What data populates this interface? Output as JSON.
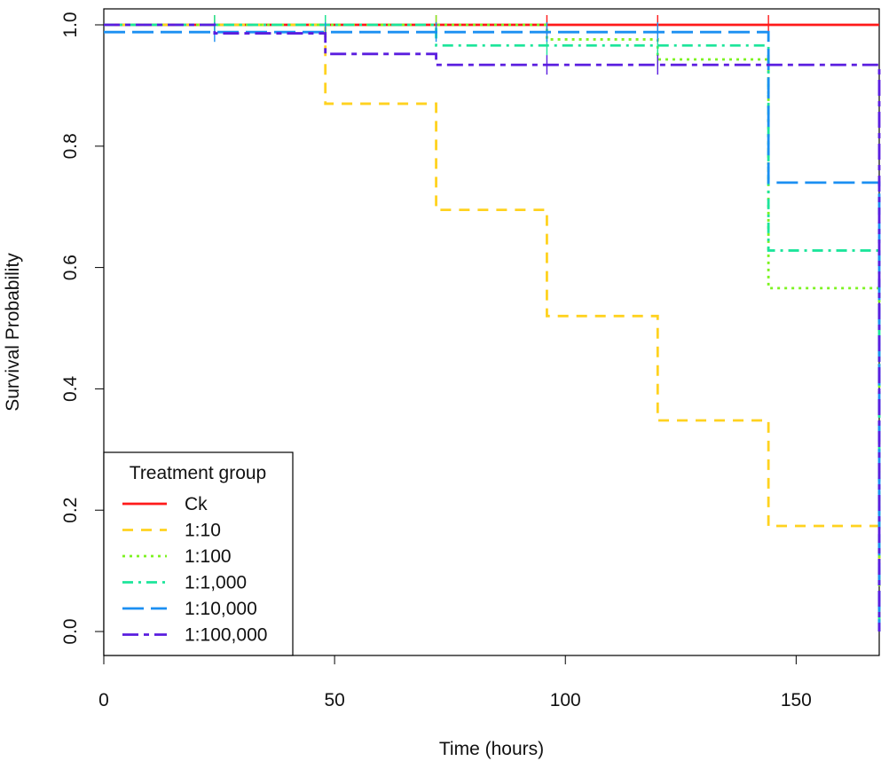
{
  "chart_data": {
    "type": "line",
    "subtype": "step-survival",
    "title": "",
    "xlabel": "Time (hours)",
    "ylabel": "Survival Probability",
    "xlim": [
      0,
      168
    ],
    "ylim": [
      0,
      1
    ],
    "x_ticks": [
      0,
      50,
      100,
      150
    ],
    "y_ticks": [
      0.0,
      0.2,
      0.4,
      0.6,
      0.8,
      1.0
    ],
    "x_tick_labels": [
      "0",
      "50",
      "100",
      "150"
    ],
    "y_tick_labels": [
      "0.0",
      "0.2",
      "0.4",
      "0.6",
      "0.8",
      "1.0"
    ],
    "grid": false,
    "legend": {
      "title": "Treatment group",
      "position": "bottom-left"
    },
    "series": [
      {
        "name": "Ck",
        "color": "#ff1a1a",
        "dash": "solid",
        "points": [
          [
            0,
            1.0
          ],
          [
            168,
            1.0
          ]
        ],
        "censor_x": [
          24,
          48,
          72,
          96,
          120,
          144
        ]
      },
      {
        "name": "1:10",
        "color": "#ffd21f",
        "dash": "dashed",
        "points": [
          [
            0,
            1.0
          ],
          [
            48,
            1.0
          ],
          [
            48,
            0.87
          ],
          [
            72,
            0.87
          ],
          [
            72,
            0.695
          ],
          [
            96,
            0.695
          ],
          [
            96,
            0.52
          ],
          [
            120,
            0.52
          ],
          [
            120,
            0.348
          ],
          [
            144,
            0.348
          ],
          [
            144,
            0.174
          ],
          [
            168,
            0.174
          ],
          [
            168,
            0.0
          ]
        ],
        "censor_x": []
      },
      {
        "name": "1:100",
        "color": "#7cf321",
        "dash": "dotted",
        "points": [
          [
            0,
            1.0
          ],
          [
            96,
            1.0
          ],
          [
            96,
            0.976
          ],
          [
            120,
            0.976
          ],
          [
            120,
            0.943
          ],
          [
            144,
            0.943
          ],
          [
            144,
            0.566
          ],
          [
            168,
            0.566
          ],
          [
            168,
            0.0
          ]
        ],
        "censor_x": [
          24,
          48,
          72,
          120
        ]
      },
      {
        "name": "1:1,000",
        "color": "#1de59b",
        "dash": "dashdot",
        "points": [
          [
            0,
            1.0
          ],
          [
            72,
            1.0
          ],
          [
            72,
            0.966
          ],
          [
            144,
            0.966
          ],
          [
            144,
            0.628
          ],
          [
            168,
            0.628
          ],
          [
            168,
            0.0
          ]
        ],
        "censor_x": [
          24,
          48,
          96,
          120
        ]
      },
      {
        "name": "1:10,000",
        "color": "#1b8ff2",
        "dash": "longdash",
        "points": [
          [
            0,
            0.988
          ],
          [
            144,
            0.988
          ],
          [
            144,
            0.74
          ],
          [
            168,
            0.74
          ],
          [
            168,
            0.0
          ]
        ],
        "censor_x": [
          24,
          48,
          72,
          96,
          120
        ]
      },
      {
        "name": "1:100,000",
        "color": "#5a1ddf",
        "dash": "twodash",
        "points": [
          [
            0,
            1.0
          ],
          [
            24,
            1.0
          ],
          [
            24,
            0.986
          ],
          [
            48,
            0.986
          ],
          [
            48,
            0.952
          ],
          [
            72,
            0.952
          ],
          [
            72,
            0.934
          ],
          [
            168,
            0.934
          ],
          [
            168,
            0.0
          ]
        ],
        "censor_x": [
          96,
          120
        ]
      }
    ]
  }
}
